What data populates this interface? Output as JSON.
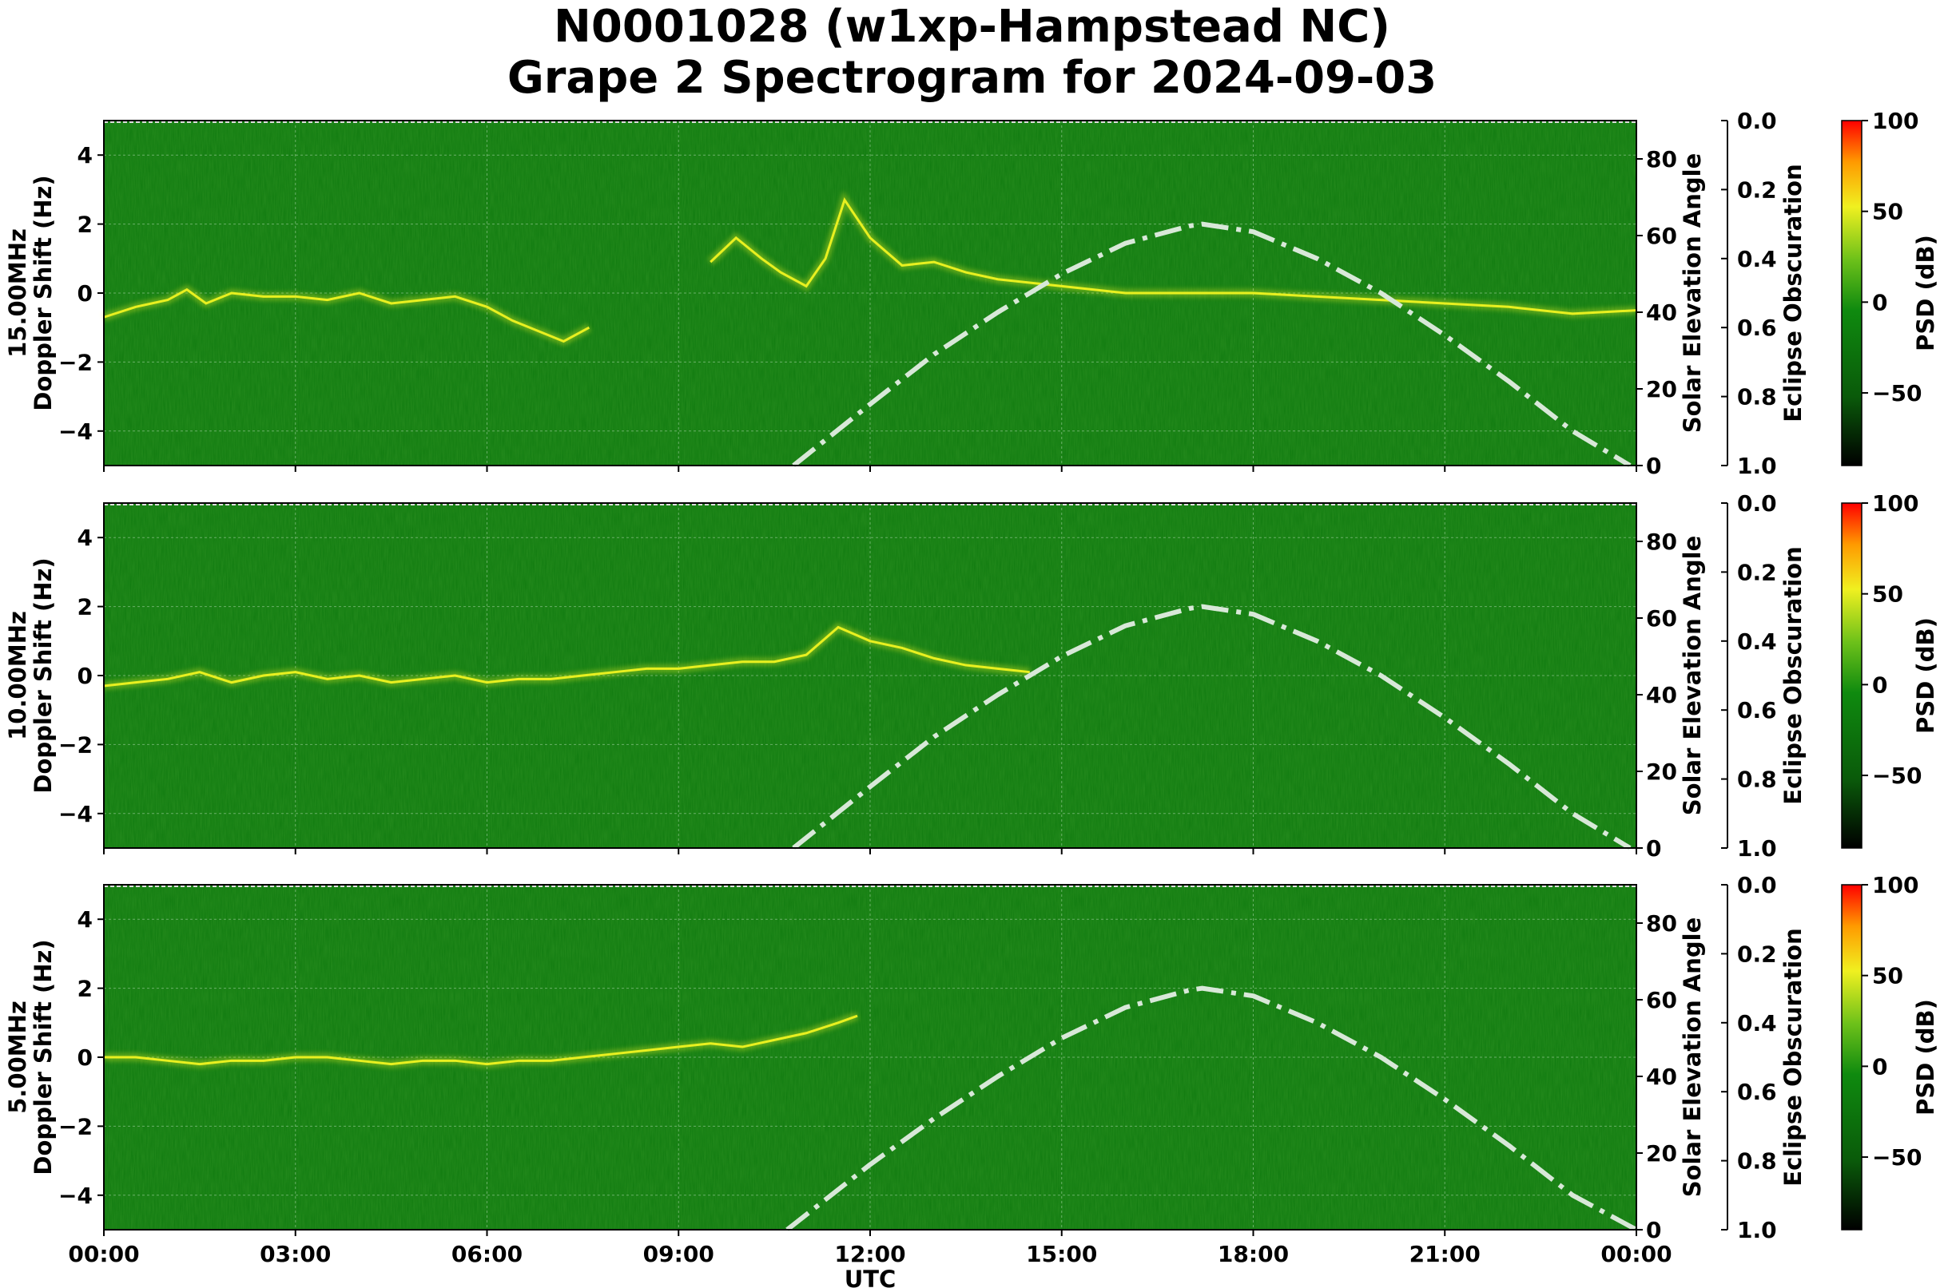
{
  "title_line1": "N0001028 (w1xp-Hampstead NC)",
  "title_line2": "Grape 2 Spectrogram for 2024-09-03",
  "colors": {
    "background_green": "#0f7a0f",
    "trace_yellow": "#e8f020",
    "solar_curve": "#d8e8d8",
    "colormap": [
      "#000000",
      "#0a5a0a",
      "#0f8a0f",
      "#6fc21a",
      "#f0f020",
      "#ff9a00",
      "#ff0000"
    ]
  },
  "chart_data": [
    {
      "type": "heatmap",
      "panel_label": "15.00MHz",
      "ylabel": "15.00MHz\nDoppler Shift (Hz)",
      "ylabel_line1": "15.00MHz",
      "ylabel_line2": "Doppler Shift (Hz)",
      "ylim": [
        -5,
        5
      ],
      "yticks": [
        "4",
        "2",
        "0",
        "−2",
        "−4"
      ],
      "ylabel_right": "Solar Elevation Angle",
      "ylim_right": [
        0,
        90
      ],
      "yticks_right": [
        "80",
        "60",
        "40",
        "20",
        "0"
      ],
      "eclipse_label": "Eclipse Obscuration",
      "eclipse_ticks": [
        "0.0",
        "0.2",
        "0.4",
        "0.6",
        "0.8",
        "1.0"
      ],
      "colorbar_label": "PSD (dB)",
      "colorbar_ticks": [
        "100",
        "50",
        "0",
        "−50"
      ],
      "colorbar_range": [
        -90,
        100
      ],
      "doppler_trace": {
        "x_hours": [
          0.0,
          0.5,
          1.0,
          1.3,
          1.6,
          2.0,
          2.5,
          3.0,
          3.5,
          4.0,
          4.5,
          5.0,
          5.5,
          6.0,
          6.4,
          6.8,
          7.2,
          7.6
        ],
        "y_hz": [
          -0.7,
          -0.4,
          -0.2,
          0.1,
          -0.3,
          0.0,
          -0.1,
          -0.1,
          -0.2,
          0.0,
          -0.3,
          -0.2,
          -0.1,
          -0.4,
          -0.8,
          -1.1,
          -1.4,
          -1.0
        ]
      },
      "doppler_trace_2": {
        "x_hours": [
          9.5,
          9.9,
          10.3,
          10.6,
          11.0,
          11.3,
          11.6,
          12.0,
          12.5,
          13.0,
          13.5,
          14.0,
          15.0,
          16.0,
          17.0,
          18.0,
          19.0,
          20.0,
          21.0,
          22.0,
          23.0,
          24.0
        ],
        "y_hz": [
          0.9,
          1.6,
          1.0,
          0.6,
          0.2,
          1.0,
          2.7,
          1.6,
          0.8,
          0.9,
          0.6,
          0.4,
          0.2,
          0.0,
          0.0,
          0.0,
          -0.1,
          -0.2,
          -0.3,
          -0.4,
          -0.6,
          -0.5
        ]
      },
      "solar_elevation": {
        "x_hours": [
          10.8,
          12.0,
          13.0,
          14.0,
          15.0,
          16.0,
          17.0,
          17.2,
          18.0,
          19.0,
          20.0,
          21.0,
          22.0,
          23.0,
          23.9
        ],
        "y_deg": [
          0,
          16,
          29,
          40,
          50,
          58,
          62.5,
          63,
          61,
          54,
          45,
          34,
          22,
          9,
          0
        ]
      }
    },
    {
      "type": "heatmap",
      "panel_label": "10.00MHz",
      "ylabel_line1": "10.00MHz",
      "ylabel_line2": "Doppler Shift (Hz)",
      "ylim": [
        -5,
        5
      ],
      "yticks": [
        "4",
        "2",
        "0",
        "−2",
        "−4"
      ],
      "ylabel_right": "Solar Elevation Angle",
      "ylim_right": [
        0,
        90
      ],
      "yticks_right": [
        "80",
        "60",
        "40",
        "20",
        "0"
      ],
      "eclipse_label": "Eclipse Obscuration",
      "eclipse_ticks": [
        "0.0",
        "0.2",
        "0.4",
        "0.6",
        "0.8",
        "1.0"
      ],
      "colorbar_label": "PSD (dB)",
      "colorbar_ticks": [
        "100",
        "50",
        "0",
        "−50"
      ],
      "colorbar_range": [
        -90,
        100
      ],
      "doppler_trace": {
        "x_hours": [
          0.0,
          0.5,
          1.0,
          1.5,
          2.0,
          2.5,
          3.0,
          3.5,
          4.0,
          4.5,
          5.0,
          5.5,
          6.0,
          6.5,
          7.0,
          7.5,
          8.0,
          8.5,
          9.0,
          9.5,
          10.0,
          10.5,
          11.0,
          11.5,
          12.0,
          12.5,
          13.0,
          13.5,
          14.0,
          14.5
        ],
        "y_hz": [
          -0.3,
          -0.2,
          -0.1,
          0.1,
          -0.2,
          0.0,
          0.1,
          -0.1,
          0.0,
          -0.2,
          -0.1,
          0.0,
          -0.2,
          -0.1,
          -0.1,
          0.0,
          0.1,
          0.2,
          0.2,
          0.3,
          0.4,
          0.4,
          0.6,
          1.4,
          1.0,
          0.8,
          0.5,
          0.3,
          0.2,
          0.1
        ]
      },
      "solar_elevation": {
        "x_hours": [
          10.8,
          12.0,
          13.0,
          14.0,
          15.0,
          16.0,
          17.0,
          17.2,
          18.0,
          19.0,
          20.0,
          21.0,
          22.0,
          23.0,
          23.9
        ],
        "y_deg": [
          0,
          16,
          29,
          40,
          50,
          58,
          62.5,
          63,
          61,
          54,
          45,
          34,
          22,
          9,
          0
        ]
      }
    },
    {
      "type": "heatmap",
      "panel_label": "5.00MHz",
      "ylabel_line1": "5.00MHz",
      "ylabel_line2": "Doppler Shift (Hz)",
      "ylim": [
        -5,
        5
      ],
      "yticks": [
        "4",
        "2",
        "0",
        "−2",
        "−4"
      ],
      "ylabel_right": "Solar Elevation Angle",
      "ylim_right": [
        0,
        90
      ],
      "yticks_right": [
        "80",
        "60",
        "40",
        "20",
        "0"
      ],
      "eclipse_label": "Eclipse Obscuration",
      "eclipse_ticks": [
        "0.0",
        "0.2",
        "0.4",
        "0.6",
        "0.8",
        "1.0"
      ],
      "colorbar_label": "PSD (dB)",
      "colorbar_ticks": [
        "100",
        "50",
        "0",
        "−50"
      ],
      "colorbar_range": [
        -90,
        100
      ],
      "doppler_trace": {
        "x_hours": [
          0.0,
          0.5,
          1.0,
          1.5,
          2.0,
          2.5,
          3.0,
          3.5,
          4.0,
          4.5,
          5.0,
          5.5,
          6.0,
          6.5,
          7.0,
          7.5,
          8.0,
          8.5,
          9.0,
          9.5,
          10.0,
          10.5,
          11.0,
          11.5,
          11.8
        ],
        "y_hz": [
          0.0,
          0.0,
          -0.1,
          -0.2,
          -0.1,
          -0.1,
          0.0,
          0.0,
          -0.1,
          -0.2,
          -0.1,
          -0.1,
          -0.2,
          -0.1,
          -0.1,
          0.0,
          0.1,
          0.2,
          0.3,
          0.4,
          0.3,
          0.5,
          0.7,
          1.0,
          1.2
        ]
      },
      "solar_elevation": {
        "x_hours": [
          10.7,
          12.0,
          13.0,
          14.0,
          15.0,
          16.0,
          17.0,
          17.2,
          18.0,
          19.0,
          20.0,
          21.0,
          22.0,
          23.0,
          24.0
        ],
        "y_deg": [
          0,
          17,
          29,
          40,
          50,
          58,
          62.5,
          63,
          61,
          54,
          45,
          34,
          22,
          9,
          0
        ]
      }
    }
  ],
  "xaxis": {
    "xlabel": "UTC",
    "xticks": [
      "00:00",
      "03:00",
      "06:00",
      "09:00",
      "12:00",
      "15:00",
      "18:00",
      "21:00",
      "00:00"
    ],
    "xlim_hours": [
      0,
      24
    ]
  }
}
